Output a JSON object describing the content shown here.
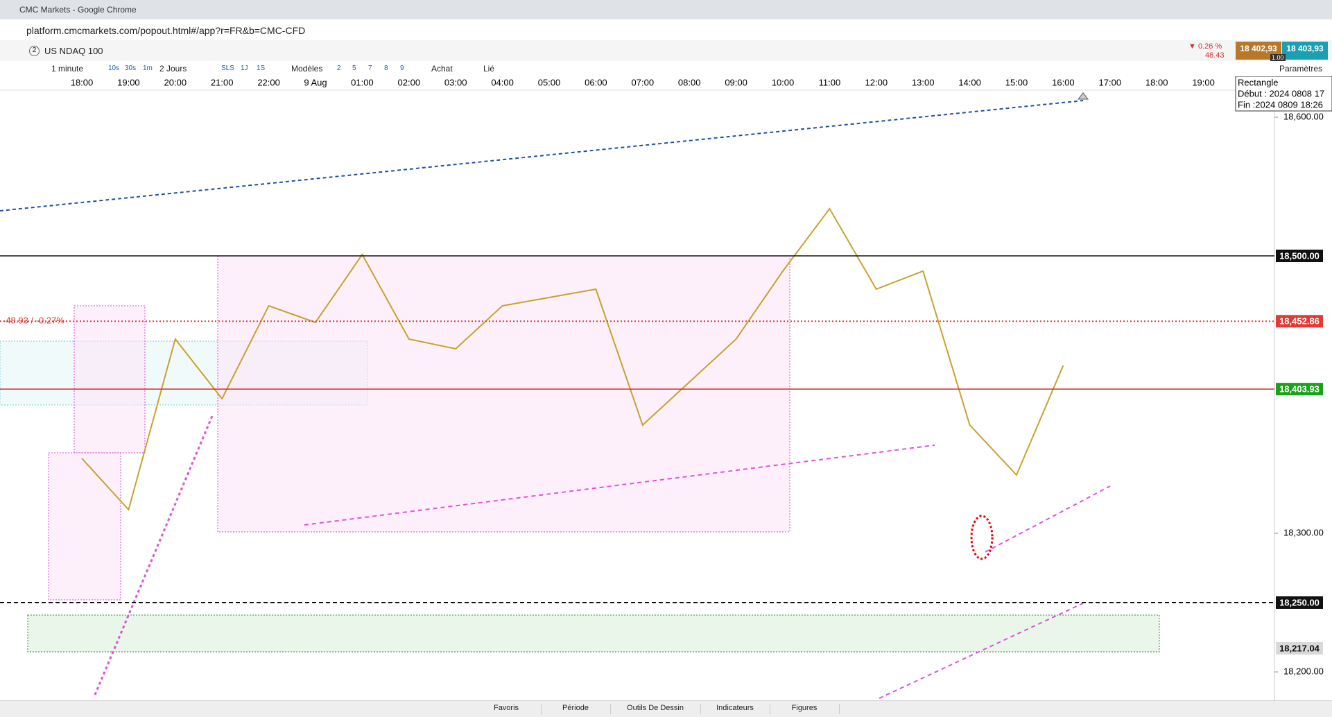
{
  "browser": {
    "title": "CMC Markets - Google Chrome",
    "url": "platform.cmcmarkets.com/popout.html#/app?r=FR&b=CMC-CFD"
  },
  "instrument": {
    "tab": "2",
    "name": "US NDAQ 100"
  },
  "quote": {
    "change_pct": "▼ 0.26 %",
    "change": "48.43",
    "bid": "18 402,93",
    "ask": "18 403,93",
    "size": "1.00"
  },
  "toolbar": {
    "interval": "1 minute",
    "quick": [
      "10s",
      "30s",
      "1m"
    ],
    "period": "2 Jours",
    "ranges": [
      "SLS",
      "1J",
      "1S"
    ],
    "templates": "Modèles",
    "layouts": [
      "2",
      "5",
      "7",
      "8",
      "9"
    ],
    "buy": "Achat",
    "linked": "Lié",
    "settings": "Paramètres"
  },
  "tooltip": {
    "title": "Rectangle",
    "start": "Début : 2024 0808 17",
    "end": "Fin :2024 0809 18:26"
  },
  "chart_data": {
    "type": "line",
    "categories": [
      "18:00",
      "19:00",
      "20:00",
      "21:00",
      "22:00",
      "9 Aug",
      "01:00",
      "02:00",
      "03:00",
      "04:00",
      "05:00",
      "06:00",
      "07:00",
      "08:00",
      "09:00",
      "10:00",
      "11:00",
      "12:00",
      "13:00",
      "14:00",
      "15:00",
      "16:00",
      "17:00",
      "18:00",
      "19:00"
    ],
    "series": [
      {
        "name": "US NDAQ 100",
        "color": "#c9a12c",
        "values": [
          18354,
          18317,
          18440,
          18397,
          18464,
          18452,
          18501,
          18440,
          18433,
          18464,
          18470,
          18476,
          18378,
          18409,
          18440,
          18489,
          18534,
          18476,
          18489,
          18378,
          18342,
          18421,
          null,
          null,
          null
        ]
      }
    ],
    "ylim": [
      18179.5,
      18619.5
    ],
    "yticks": [
      {
        "value": 18200,
        "label": "18,200.00"
      },
      {
        "value": 18300,
        "label": "18,300.00"
      },
      {
        "value": 18600,
        "label": "18,600.00"
      }
    ],
    "levels": [
      {
        "value": 18500,
        "label": "18,500.00",
        "color": "#111111",
        "style": "solid"
      },
      {
        "value": 18452.86,
        "label": "18,452.86",
        "color": "#e53935",
        "style": "dotted",
        "note": "-48.93 / -0.27%"
      },
      {
        "value": 18403.93,
        "label": "18,403.93",
        "color": "#d32f2f",
        "style": "solid",
        "badge": "#1aa31a"
      },
      {
        "value": 18250,
        "label": "18,250.00",
        "color": "#111111",
        "style": "dashed"
      },
      {
        "value": 18217.04,
        "label": "18,217.04",
        "color": "#2e8b2e",
        "style": "none",
        "badge": "#d9d9d9"
      }
    ]
  },
  "bottom_bar": [
    "Favoris",
    "Période",
    "Outils De Dessin",
    "Indicateurs",
    "Figures"
  ]
}
